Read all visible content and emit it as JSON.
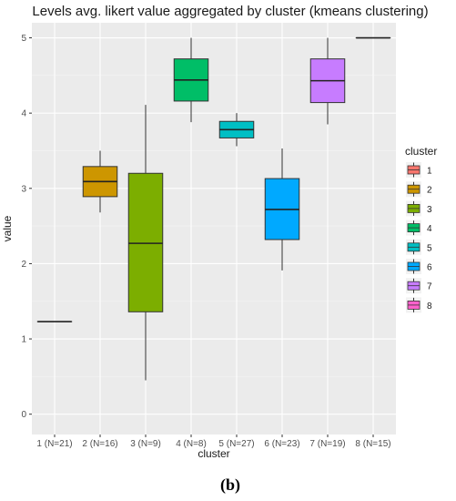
{
  "chart_data": {
    "type": "boxplot",
    "title": "Levels avg. likert value aggregated by cluster (kmeans clustering)",
    "xlabel": "cluster",
    "ylabel": "value",
    "ylim": [
      0,
      5.2
    ],
    "yticks": [
      0,
      1,
      2,
      3,
      4,
      5
    ],
    "grid": true,
    "legend": {
      "title": "cluster",
      "placement": "right"
    },
    "categories": [
      "1 (N=21)",
      "2 (N=16)",
      "3 (N=9)",
      "4 (N=8)",
      "5 (N=27)",
      "6 (N=23)",
      "7 (N=19)",
      "8 (N=15)"
    ],
    "series": [
      {
        "name": "1",
        "color": "#F8766D",
        "min": 1.23,
        "q1": 1.23,
        "median": 1.23,
        "q3": 1.23,
        "max": 1.23
      },
      {
        "name": "2",
        "color": "#CD9600",
        "min": 2.68,
        "q1": 2.89,
        "median": 3.09,
        "q3": 3.29,
        "max": 3.5
      },
      {
        "name": "3",
        "color": "#7CAE00",
        "min": 0.45,
        "q1": 1.36,
        "median": 2.27,
        "q3": 3.2,
        "max": 4.11
      },
      {
        "name": "4",
        "color": "#00BE67",
        "min": 3.88,
        "q1": 4.16,
        "median": 4.44,
        "q3": 4.72,
        "max": 5.0
      },
      {
        "name": "5",
        "color": "#00BFC4",
        "min": 3.56,
        "q1": 3.67,
        "median": 3.78,
        "q3": 3.89,
        "max": 4.0
      },
      {
        "name": "6",
        "color": "#00A9FF",
        "min": 1.91,
        "q1": 2.32,
        "median": 2.72,
        "q3": 3.13,
        "max": 3.53
      },
      {
        "name": "7",
        "color": "#C77CFF",
        "min": 3.85,
        "q1": 4.14,
        "median": 4.43,
        "q3": 4.72,
        "max": 5.0
      },
      {
        "name": "8",
        "color": "#FF61CC",
        "min": 5.0,
        "q1": 5.0,
        "median": 5.0,
        "q3": 5.0,
        "max": 5.0
      }
    ]
  },
  "caption": "(b)"
}
